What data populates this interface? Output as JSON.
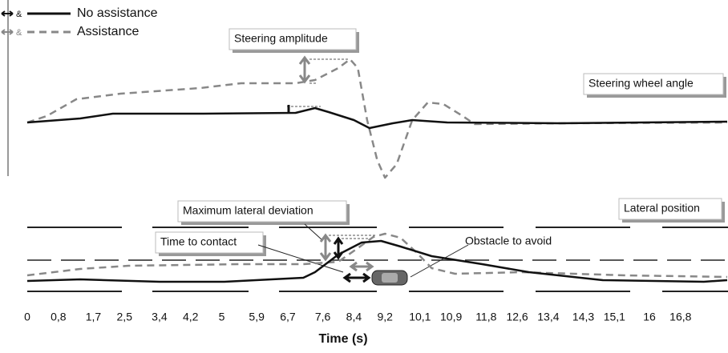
{
  "chart_data": {
    "type": "line",
    "xlabel": "Time (s)",
    "xlim": [
      0,
      18
    ],
    "xticks": [
      0,
      {
        "value": 0.8,
        "label": "0,8"
      },
      {
        "value": 1.7,
        "label": "1,7"
      },
      {
        "value": 2.5,
        "label": "2,5"
      },
      {
        "value": 3.4,
        "label": "3,4"
      },
      {
        "value": 4.2,
        "label": "4,2"
      },
      5,
      {
        "value": 5.9,
        "label": "5,9"
      },
      {
        "value": 6.7,
        "label": "6,7"
      },
      {
        "value": 7.6,
        "label": "7,6"
      },
      {
        "value": 8.4,
        "label": "8,4"
      },
      {
        "value": 9.2,
        "label": "9,2"
      },
      {
        "value": 10.1,
        "label": "10,1"
      },
      {
        "value": 10.9,
        "label": "10,9"
      },
      {
        "value": 11.8,
        "label": "11,8"
      },
      {
        "value": 12.6,
        "label": "12,6"
      },
      {
        "value": 13.4,
        "label": "13,4"
      },
      {
        "value": 14.3,
        "label": "14,3"
      },
      {
        "value": 15.1,
        "label": "15,1"
      },
      16,
      {
        "value": 16.8,
        "label": "16,8"
      }
    ],
    "legend_separator": "&",
    "series": [
      {
        "name": "No assistance",
        "color": "#111111",
        "dashed": false
      },
      {
        "name": "Assistance",
        "color": "#888888",
        "dashed": true
      }
    ],
    "panels": [
      {
        "label": "Steering wheel angle",
        "ylim": [
          -75,
          95
        ],
        "lines": [
          {
            "x": [
              0,
              1.36,
              2.2,
              4.45,
              6.9,
              7.4,
              7.75,
              8.4,
              8.8,
              9.4,
              9.9,
              10.8,
              13.7,
              18
            ],
            "values": [
              0,
              5,
              11,
              11,
              12,
              18,
              13,
              3,
              -7,
              -1,
              3,
              0,
              -1,
              1
            ]
          },
          {
            "x": [
              0,
              0.5,
              1.26,
              2.4,
              4.45,
              5.5,
              6.9,
              7.4,
              8,
              8.3,
              8.5,
              8.74,
              9,
              9.2,
              9.5,
              9.9,
              10.3,
              10.7,
              11.2,
              11.5,
              13.7,
              18
            ],
            "values": [
              0,
              8,
              29,
              36,
              43,
              49,
              49,
              53,
              68,
              79,
              68,
              3,
              -47,
              -69,
              -52,
              3,
              25,
              23,
              8,
              -2,
              -1,
              0
            ]
          }
        ]
      },
      {
        "label": "Lateral position",
        "ylim": [
          0,
          80
        ],
        "lines": [
          {
            "x": [
              0,
              1.36,
              3.4,
              5.07,
              7.1,
              7.4,
              8,
              8.6,
              9.1,
              9.6,
              10.4,
              11.7,
              12.9,
              14.8,
              17.4,
              18
            ],
            "values": [
              9,
              11,
              8,
              8,
              13,
              20,
              42,
              57,
              59,
              52,
              40,
              30,
              20,
              10,
              8,
              10
            ]
          },
          {
            "x": [
              0,
              1.36,
              2.6,
              5.5,
              7.1,
              8,
              8.5,
              8.9,
              9.2,
              9.6,
              10,
              10.4,
              11,
              12.7,
              15.4,
              18
            ],
            "values": [
              16,
              24,
              28,
              30,
              30,
              33,
              50,
              64,
              68,
              63,
              45,
              25,
              18,
              20,
              16,
              14
            ]
          }
        ]
      }
    ],
    "annotations": [
      "Steering amplitude",
      "Maximum lateral deviation",
      "Time to contact",
      "Obstacle to avoid"
    ]
  }
}
